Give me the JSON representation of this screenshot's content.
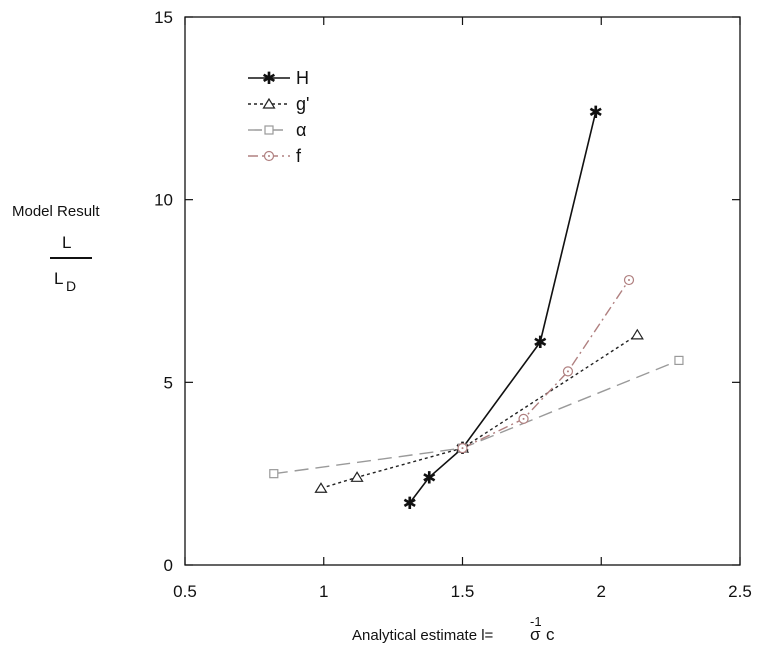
{
  "chart_data": {
    "type": "line",
    "xlabel": "Analytical estimate l=",
    "xlabel_formula": "σ",
    "xlabel_exponent": "-1",
    "xlabel_subscript": "c",
    "ylabel_title": "Model Result",
    "ylabel_numerator": "L",
    "ylabel_denominator": "L",
    "ylabel_denominator_sub": "D",
    "xlim": [
      0.5,
      2.5
    ],
    "ylim": [
      0,
      15
    ],
    "x_ticks": [
      0.5,
      1,
      1.5,
      2,
      2.5
    ],
    "x_tick_labels": [
      "0.5",
      "1",
      "1.5",
      "2",
      "2.5"
    ],
    "y_ticks": [
      0,
      5,
      10,
      15
    ],
    "y_tick_labels": [
      "0",
      "5",
      "10",
      "15"
    ],
    "grid": false,
    "legend_position": "top-left",
    "series": [
      {
        "name": "H",
        "marker": "star",
        "line_style": "solid",
        "color": "#111111",
        "x": [
          1.31,
          1.38,
          1.5,
          1.78,
          1.98
        ],
        "y": [
          1.7,
          2.4,
          3.2,
          6.1,
          12.4
        ]
      },
      {
        "name": "g'",
        "marker": "triangle",
        "line_style": "dotted",
        "color": "#222222",
        "x": [
          0.99,
          1.12,
          1.5,
          2.13
        ],
        "y": [
          2.1,
          2.4,
          3.2,
          6.3
        ]
      },
      {
        "name": "α",
        "marker": "square",
        "line_style": "long-dash",
        "color": "#9a9a9a",
        "x": [
          0.82,
          1.5,
          2.28
        ],
        "y": [
          2.5,
          3.2,
          5.6
        ]
      },
      {
        "name": "f",
        "marker": "circle",
        "line_style": "dash-dot",
        "color": "#b08080",
        "x": [
          1.5,
          1.72,
          1.88,
          2.1
        ],
        "y": [
          3.2,
          4.0,
          5.3,
          7.8
        ]
      }
    ]
  }
}
